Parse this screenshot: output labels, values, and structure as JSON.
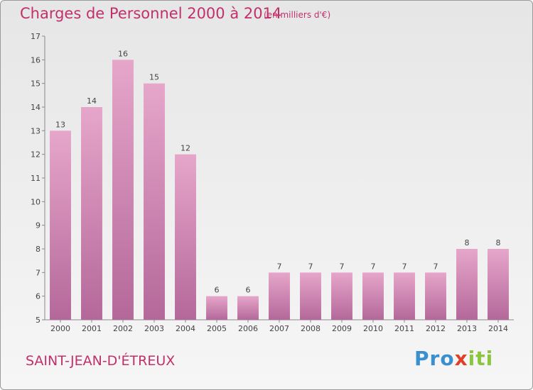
{
  "title": "Charges de Personnel 2000 à 2014",
  "subtitle": "(en milliers d'€)",
  "place": "SAINT-JEAN-D'ÉTREUX",
  "logo": {
    "p1": "Pro",
    "p2": "x",
    "p3": "iti"
  },
  "colors": {
    "bar_top": "#e6a6ca",
    "bar_bottom": "#b4689a",
    "title": "#c1306a"
  },
  "chart_data": {
    "type": "bar",
    "categories": [
      "2000",
      "2001",
      "2002",
      "2003",
      "2004",
      "2005",
      "2006",
      "2007",
      "2008",
      "2009",
      "2010",
      "2011",
      "2012",
      "2013",
      "2014"
    ],
    "values": [
      13,
      14,
      16,
      15,
      12,
      6,
      6,
      7,
      7,
      7,
      7,
      7,
      7,
      8,
      8
    ],
    "data_labels": [
      "13",
      "14",
      "16",
      "15",
      "12",
      "6",
      "6",
      "7",
      "7",
      "7",
      "7",
      "7",
      "7",
      "8",
      "8"
    ],
    "ylim": [
      5,
      17
    ],
    "yticks": [
      "5",
      "6",
      "7",
      "8",
      "9",
      "10",
      "11",
      "12",
      "13",
      "14",
      "15",
      "16",
      "17"
    ],
    "title": "Charges de Personnel 2000 à 2014",
    "xlabel": "",
    "ylabel": "",
    "grid": false
  }
}
